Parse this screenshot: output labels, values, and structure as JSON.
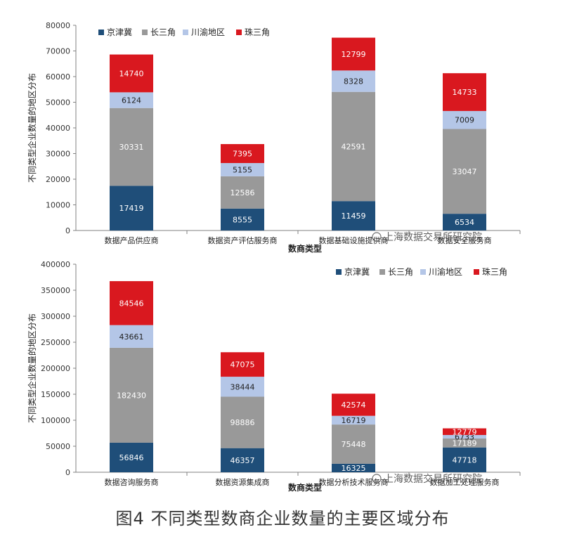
{
  "colors": {
    "jjj": "#1f4e79",
    "csj": "#999999",
    "cy": "#b4c6e7",
    "zsj": "#d9181f"
  },
  "watermark": "上海数据交易所研究院",
  "caption": "图4 不同类型数商企业数量的主要区域分布",
  "chart_data": [
    {
      "type": "bar",
      "stacked": true,
      "categories": [
        "数据产品供应商",
        "数据资产评估服务商",
        "数据基础设施提供商",
        "数据安全服务商"
      ],
      "series": [
        {
          "name": "京津冀",
          "color_key": "jjj",
          "values": [
            17419,
            8555,
            11459,
            6534
          ]
        },
        {
          "name": "长三角",
          "color_key": "csj",
          "values": [
            30331,
            12586,
            42591,
            33047
          ]
        },
        {
          "name": "川渝地区",
          "color_key": "cy",
          "values": [
            6124,
            5155,
            8328,
            7009
          ]
        },
        {
          "name": "珠三角",
          "color_key": "zsj",
          "values": [
            14740,
            7395,
            12799,
            14733
          ]
        }
      ],
      "ylim": [
        0,
        80000
      ],
      "yticks": [
        0,
        10000,
        20000,
        30000,
        40000,
        50000,
        60000,
        70000,
        80000
      ],
      "xlabel": "数商类型",
      "ylabel": "不同类型企业数量的地区分布",
      "legend_position": "top-left"
    },
    {
      "type": "bar",
      "stacked": true,
      "categories": [
        "数据咨询服务商",
        "数据资源集成商",
        "数据分析技术服务商",
        "数据加工处理服务商"
      ],
      "series": [
        {
          "name": "京津冀",
          "color_key": "jjj",
          "values": [
            56846,
            46357,
            16325,
            47718
          ]
        },
        {
          "name": "长三角",
          "color_key": "csj",
          "values": [
            182430,
            98886,
            75448,
            17189
          ]
        },
        {
          "name": "川渝地区",
          "color_key": "cy",
          "values": [
            43661,
            38444,
            16719,
            6733
          ]
        },
        {
          "name": "珠三角",
          "color_key": "zsj",
          "values": [
            84546,
            47075,
            42574,
            12779
          ]
        }
      ],
      "ylim": [
        0,
        400000
      ],
      "yticks": [
        0,
        50000,
        100000,
        150000,
        200000,
        250000,
        300000,
        350000,
        400000
      ],
      "xlabel": "数商类型",
      "ylabel": "不同类型企业数量的地区分布",
      "legend_position": "top-right"
    }
  ]
}
